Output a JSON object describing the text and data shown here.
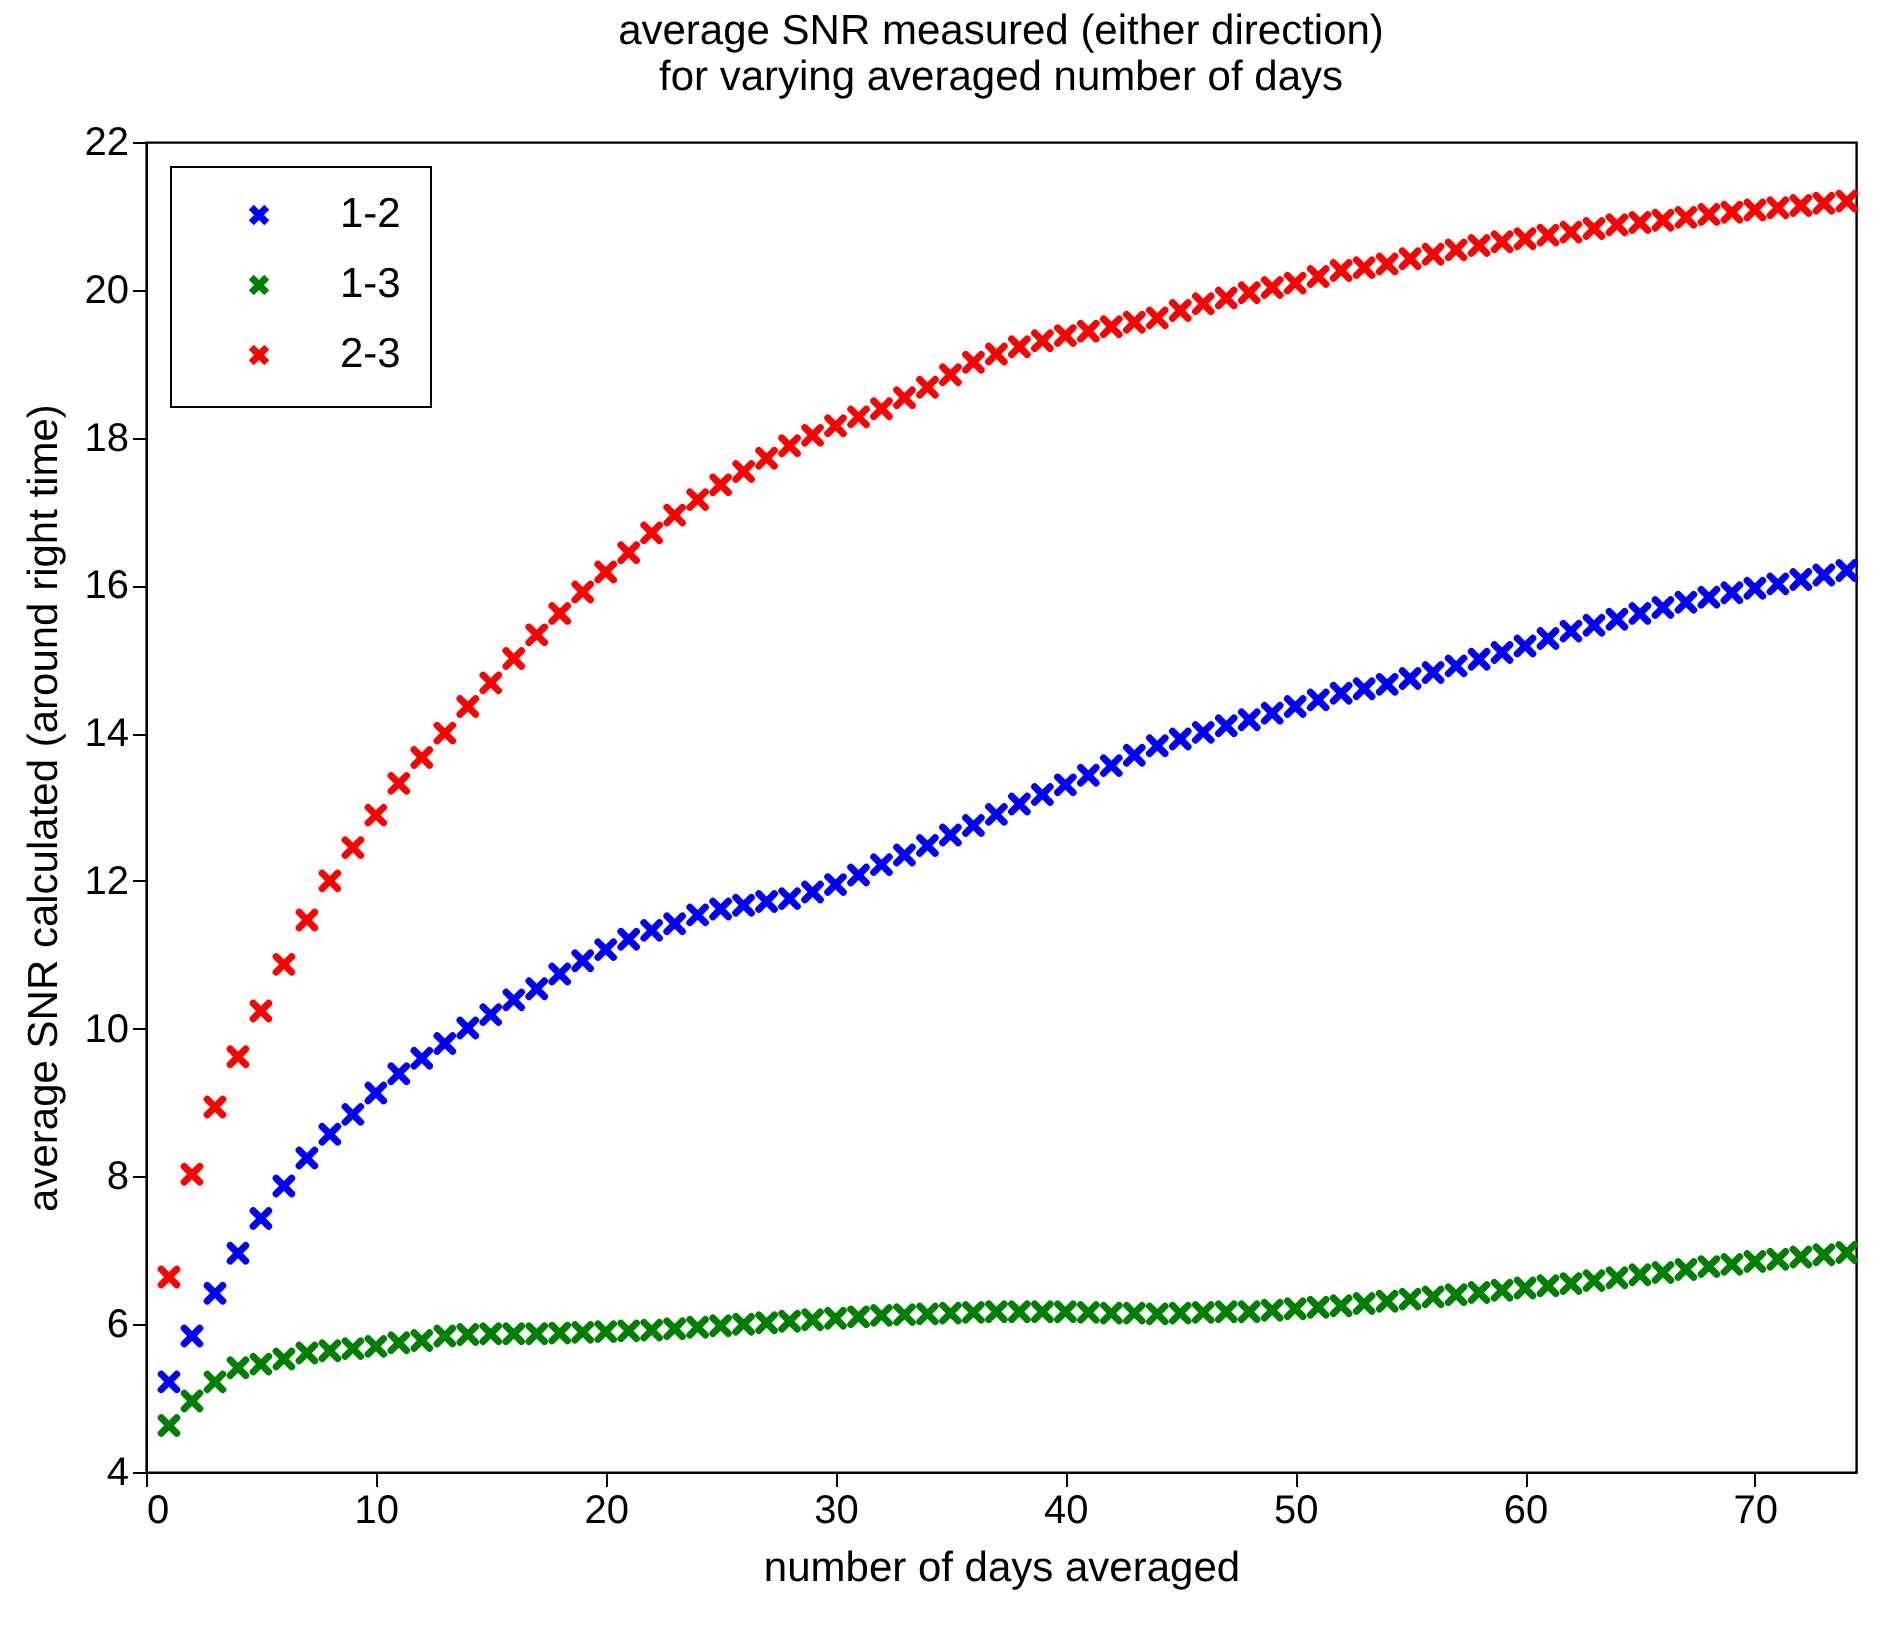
{
  "chart_data": {
    "type": "scatter",
    "title": "average SNR measured (either direction)\nfor varying averaged number of days",
    "xlabel": "number of days averaged",
    "ylabel": "average SNR calculated (around right time)",
    "x": [
      1,
      2,
      3,
      4,
      5,
      6,
      7,
      8,
      9,
      10,
      11,
      12,
      13,
      14,
      15,
      16,
      17,
      18,
      19,
      20,
      21,
      22,
      23,
      24,
      25,
      26,
      27,
      28,
      29,
      30,
      31,
      32,
      33,
      34,
      35,
      36,
      37,
      38,
      39,
      40,
      41,
      42,
      43,
      44,
      45,
      46,
      47,
      48,
      49,
      50,
      51,
      52,
      53,
      54,
      55,
      56,
      57,
      58,
      59,
      60,
      61,
      62,
      63,
      64,
      65,
      66,
      67,
      68,
      69,
      70,
      71,
      72,
      73,
      74
    ],
    "series": [
      {
        "name": "1-2",
        "color": "#0000ff",
        "values": [
          5.22,
          5.84,
          6.42,
          6.96,
          7.43,
          7.87,
          8.25,
          8.57,
          8.84,
          9.13,
          9.39,
          9.6,
          9.8,
          10.01,
          10.19,
          10.39,
          10.54,
          10.74,
          10.92,
          11.07,
          11.21,
          11.33,
          11.42,
          11.54,
          11.62,
          11.67,
          11.72,
          11.76,
          11.85,
          11.95,
          12.08,
          12.22,
          12.35,
          12.48,
          12.62,
          12.75,
          12.9,
          13.04,
          13.17,
          13.3,
          13.43,
          13.56,
          13.7,
          13.83,
          13.92,
          14.01,
          14.1,
          14.18,
          14.27,
          14.36,
          14.45,
          14.54,
          14.6,
          14.66,
          14.74,
          14.82,
          14.91,
          15.0,
          15.09,
          15.18,
          15.28,
          15.38,
          15.46,
          15.54,
          15.62,
          15.7,
          15.77,
          15.84,
          15.9,
          15.96,
          16.02,
          16.08,
          16.14,
          16.2
        ]
      },
      {
        "name": "1-3",
        "color": "#008000",
        "values": [
          4.63,
          4.96,
          5.22,
          5.41,
          5.46,
          5.53,
          5.61,
          5.64,
          5.67,
          5.7,
          5.75,
          5.78,
          5.84,
          5.86,
          5.87,
          5.87,
          5.87,
          5.88,
          5.89,
          5.9,
          5.91,
          5.92,
          5.94,
          5.96,
          5.98,
          6.0,
          6.02,
          6.04,
          6.06,
          6.08,
          6.1,
          6.12,
          6.13,
          6.14,
          6.15,
          6.16,
          6.17,
          6.17,
          6.17,
          6.17,
          6.16,
          6.15,
          6.15,
          6.14,
          6.15,
          6.16,
          6.17,
          6.17,
          6.19,
          6.21,
          6.23,
          6.25,
          6.28,
          6.31,
          6.34,
          6.37,
          6.4,
          6.43,
          6.46,
          6.49,
          6.52,
          6.55,
          6.59,
          6.63,
          6.67,
          6.7,
          6.74,
          6.78,
          6.81,
          6.85,
          6.88,
          6.91,
          6.94,
          6.97
        ]
      },
      {
        "name": "2-3",
        "color": "#ff0000",
        "values": [
          6.64,
          8.03,
          8.94,
          9.62,
          10.24,
          10.87,
          11.47,
          12.0,
          12.45,
          12.89,
          13.32,
          13.67,
          14.0,
          14.36,
          14.68,
          15.01,
          15.33,
          15.62,
          15.91,
          16.18,
          16.44,
          16.71,
          16.95,
          17.16,
          17.36,
          17.54,
          17.72,
          17.89,
          18.03,
          18.16,
          18.28,
          18.39,
          18.54,
          18.68,
          18.85,
          19.02,
          19.13,
          19.23,
          19.31,
          19.38,
          19.44,
          19.5,
          19.56,
          19.62,
          19.72,
          19.81,
          19.89,
          19.96,
          20.03,
          20.09,
          20.18,
          20.26,
          20.3,
          20.35,
          20.42,
          20.48,
          20.54,
          20.6,
          20.65,
          20.69,
          20.74,
          20.78,
          20.83,
          20.88,
          20.91,
          20.94,
          20.98,
          21.02,
          21.05,
          21.08,
          21.11,
          21.14,
          21.17,
          21.2
        ]
      }
    ],
    "xlim": [
      0,
      74.4
    ],
    "xticks": [
      0,
      10,
      20,
      30,
      40,
      50,
      60,
      70
    ],
    "ylim": [
      4,
      22
    ],
    "yticks": [
      4,
      6,
      8,
      10,
      12,
      14,
      16,
      18,
      20,
      22
    ],
    "grid": false,
    "legend": "top left",
    "marker": "cross"
  }
}
